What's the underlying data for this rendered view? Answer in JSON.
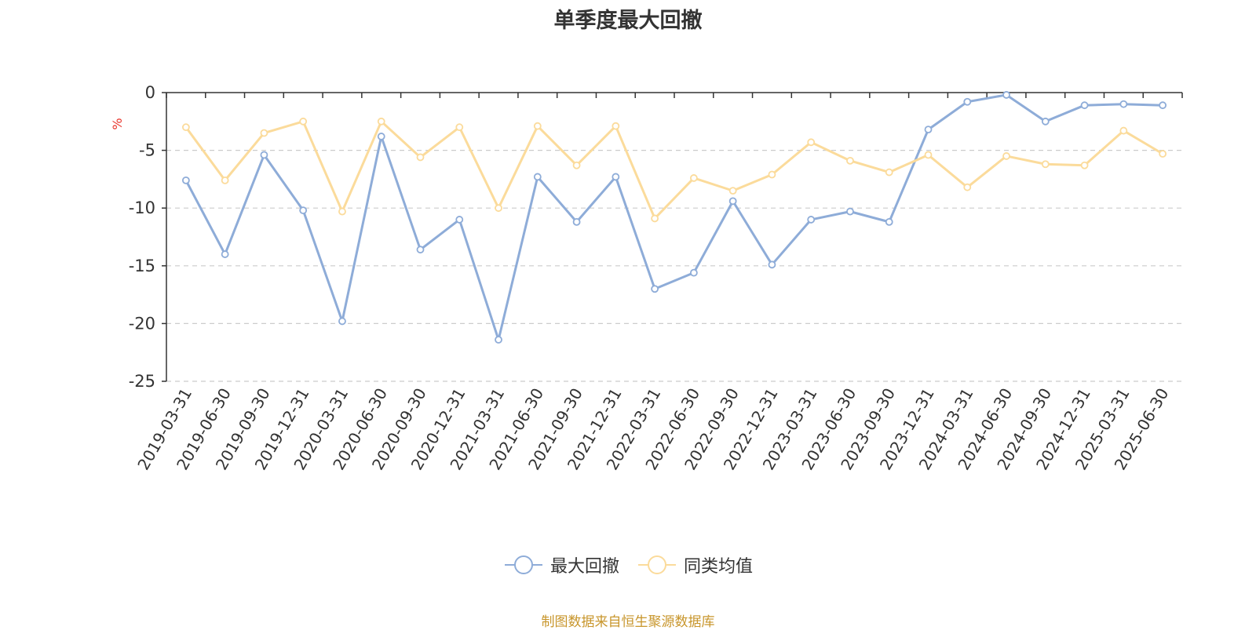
{
  "chart_data": {
    "type": "line",
    "title": "单季度最大回撤",
    "ylabel": "%",
    "xlabel": "",
    "ylim": [
      -25,
      0
    ],
    "yticks": [
      0,
      -5,
      -10,
      -15,
      -20,
      -25
    ],
    "grid": true,
    "legend_position": "bottom",
    "categories": [
      "2019-03-31",
      "2019-06-30",
      "2019-09-30",
      "2019-12-31",
      "2020-03-31",
      "2020-06-30",
      "2020-09-30",
      "2020-12-31",
      "2021-03-31",
      "2021-06-30",
      "2021-09-30",
      "2021-12-31",
      "2022-03-31",
      "2022-06-30",
      "2022-09-30",
      "2022-12-31",
      "2023-03-31",
      "2023-06-30",
      "2023-09-30",
      "2023-12-31",
      "2024-03-31",
      "2024-06-30",
      "2024-09-30",
      "2024-12-31",
      "2025-03-31",
      "2025-06-30"
    ],
    "series": [
      {
        "name": "最大回撤",
        "color": "#8eacd8",
        "values": [
          -7.6,
          -14.0,
          -5.4,
          -10.2,
          -19.8,
          -3.8,
          -13.6,
          -11.0,
          -21.4,
          -7.3,
          -11.2,
          -7.3,
          -17.0,
          -15.6,
          -9.4,
          -14.9,
          -11.0,
          -10.3,
          -11.2,
          -3.2,
          -0.8,
          -0.2,
          -2.5,
          -1.1,
          -1.0,
          -1.1
        ]
      },
      {
        "name": "同类均值",
        "color": "#fbdb9b",
        "values": [
          -3.0,
          -7.6,
          -3.5,
          -2.5,
          -10.3,
          -2.5,
          -5.6,
          -3.0,
          -10.0,
          -2.9,
          -6.3,
          -2.9,
          -10.9,
          -7.4,
          -8.5,
          -7.1,
          -4.3,
          -5.9,
          -6.9,
          -5.4,
          -8.2,
          -5.5,
          -6.2,
          -6.3,
          -3.3,
          -5.3
        ]
      }
    ]
  },
  "source_text": "制图数据来自恒生聚源数据库",
  "colors": {
    "axis": "#333333",
    "grid": "#cccccc",
    "ylabel": "#e8342b",
    "source": "#c8962c"
  }
}
